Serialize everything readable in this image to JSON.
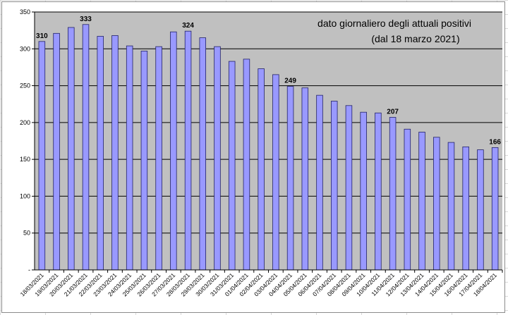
{
  "chart_data": {
    "type": "bar",
    "title_lines": [
      "dato giornaliero degli attuali positivi",
      "(dal 18 marzo 2021)"
    ],
    "categories": [
      "18/03/2021",
      "19/03/2021",
      "20/03/2021",
      "21/03/2021",
      "22/03/2021",
      "23/03/2021",
      "24/03/2021",
      "25/03/2021",
      "26/03/2021",
      "27/03/2021",
      "28/03/2021",
      "29/03/2021",
      "30/03/2021",
      "31/03/2021",
      "01/04/2021",
      "02/04/2021",
      "03/04/2021",
      "04/04/2021",
      "05/04/2021",
      "06/04/2021",
      "07/04/2021",
      "08/04/2021",
      "09/04/2021",
      "10/04/2021",
      "11/04/2021",
      "12/04/2021",
      "13/04/2021",
      "14/04/2021",
      "15/04/2021",
      "16/04/2021",
      "17/04/2021",
      "18/04/2021"
    ],
    "values": [
      310,
      321,
      329,
      333,
      317,
      318,
      304,
      297,
      303,
      323,
      324,
      315,
      303,
      283,
      286,
      273,
      265,
      249,
      247,
      237,
      229,
      223,
      214,
      213,
      207,
      191,
      187,
      180,
      173,
      167,
      163,
      166
    ],
    "data_labels": [
      {
        "index": 0,
        "text": "310"
      },
      {
        "index": 3,
        "text": "333"
      },
      {
        "index": 10,
        "text": "324"
      },
      {
        "index": 17,
        "text": "249"
      },
      {
        "index": 24,
        "text": "207"
      },
      {
        "index": 31,
        "text": "166"
      }
    ],
    "ylim": [
      0,
      350
    ],
    "yticks": [
      0,
      50,
      100,
      150,
      200,
      250,
      300,
      350
    ],
    "ytick_labels": [
      "-",
      "50",
      "100",
      "150",
      "200",
      "250",
      "300",
      "350"
    ],
    "grid": "horizontal",
    "legend": "none",
    "colors": {
      "bar_fill": "#9999ff",
      "bar_stroke": "#222266",
      "plot_background": "#c0c0c0",
      "gridline": "#000000"
    }
  }
}
